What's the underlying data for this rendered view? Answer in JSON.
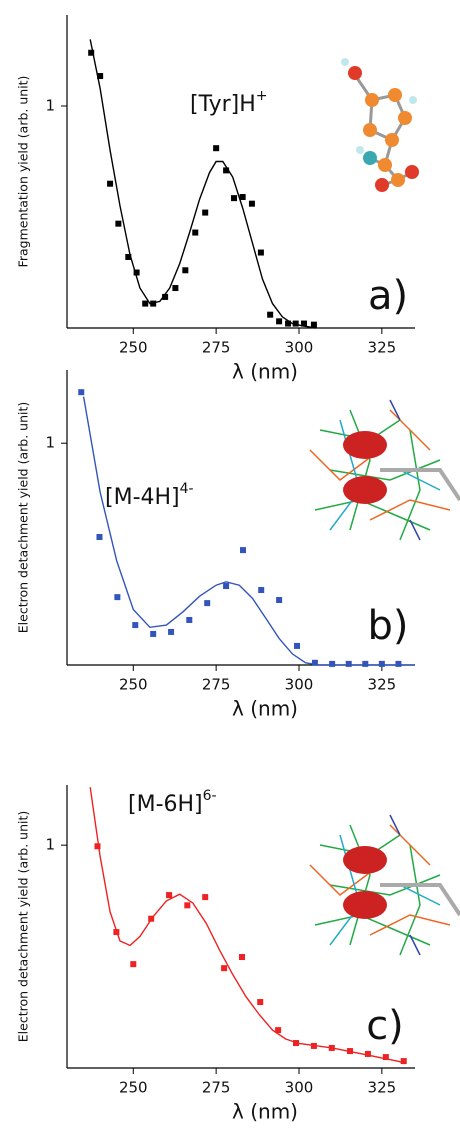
{
  "chart_data": [
    {
      "type": "scatter",
      "xlabel": "λ  (nm)",
      "ylabel": "Fragmentation yield (arb. unit)",
      "annotation": {
        "text": "[Tyr]H",
        "superscript": "+"
      },
      "panel_label": "a)",
      "xlim": [
        230,
        335
      ],
      "ylim": [
        0,
        1.41
      ],
      "xticks": [
        250,
        275,
        300,
        325
      ],
      "yticks": [
        1
      ],
      "series": [
        {
          "type": "line",
          "color": "#000000",
          "x": [
            237,
            240,
            243,
            246,
            249,
            252,
            255,
            258,
            261,
            264,
            267,
            270,
            273,
            275,
            277,
            280,
            283,
            286,
            289,
            292,
            295,
            298,
            301,
            305
          ],
          "values": [
            1.3,
            1.08,
            0.8,
            0.55,
            0.33,
            0.18,
            0.11,
            0.12,
            0.18,
            0.29,
            0.43,
            0.58,
            0.7,
            0.75,
            0.75,
            0.68,
            0.54,
            0.38,
            0.22,
            0.11,
            0.05,
            0.02,
            0.01,
            0
          ]
        },
        {
          "type": "scatter",
          "color": "#000000",
          "x": [
            237.3,
            240,
            243,
            245.5,
            248.5,
            251,
            253.6,
            256,
            259.6,
            262.7,
            265.7,
            268.7,
            271.7,
            275,
            278,
            280.4,
            283,
            285.8,
            288.5,
            291.3,
            294,
            296.7,
            299,
            301.5,
            304.5
          ],
          "values": [
            1.24,
            1.135,
            0.65,
            0.47,
            0.32,
            0.25,
            0.11,
            0.11,
            0.14,
            0.18,
            0.26,
            0.43,
            0.52,
            0.81,
            0.71,
            0.585,
            0.59,
            0.56,
            0.34,
            0.06,
            0.03,
            0.02,
            0.02,
            0.02,
            0.015
          ]
        }
      ]
    },
    {
      "type": "scatter",
      "xlabel": "λ  (nm)",
      "ylabel": "Electron detachment yield (arb. unit)",
      "annotation": {
        "text": "[M-4H]",
        "superscript": "4-"
      },
      "panel_label": "b)",
      "xlim": [
        230,
        335
      ],
      "ylim": [
        0,
        1.33
      ],
      "xticks": [
        250,
        275,
        300,
        325
      ],
      "yticks": [
        1
      ],
      "series": [
        {
          "type": "line",
          "color": "#3355bb",
          "x": [
            235,
            240,
            245,
            250,
            255,
            260,
            265,
            270,
            275,
            278,
            282,
            286,
            290,
            294,
            298,
            302,
            306,
            335
          ],
          "values": [
            1.21,
            0.78,
            0.47,
            0.25,
            0.17,
            0.18,
            0.24,
            0.31,
            0.36,
            0.375,
            0.36,
            0.3,
            0.21,
            0.12,
            0.05,
            0.01,
            0,
            0
          ]
        },
        {
          "type": "scatter",
          "color": "#3355bb",
          "x": [
            234.3,
            239.8,
            245.2,
            250.6,
            256,
            261.4,
            266.9,
            272.3,
            278,
            283.1,
            288.6,
            294,
            299.4,
            304.8,
            310,
            315,
            320,
            325,
            330
          ],
          "values": [
            1.23,
            0.577,
            0.306,
            0.18,
            0.14,
            0.149,
            0.203,
            0.279,
            0.356,
            0.518,
            0.338,
            0.293,
            0.086,
            0.01,
            0.005,
            0.005,
            0.005,
            0.005,
            0.005
          ]
        }
      ]
    },
    {
      "type": "scatter",
      "xlabel": "λ  (nm)",
      "ylabel": "Electron detachment yield (arb. unit)",
      "annotation": {
        "text": "[M-6H]",
        "superscript": "6-"
      },
      "panel_label": "c)",
      "xlim": [
        230,
        335
      ],
      "ylim": [
        0,
        1.27
      ],
      "xticks": [
        250,
        275,
        300,
        325
      ],
      "yticks": [
        1
      ],
      "series": [
        {
          "type": "line",
          "color": "#ee2222",
          "x": [
            237,
            240,
            243,
            246,
            249,
            252,
            256,
            260,
            264,
            268,
            272,
            276,
            280,
            284,
            288,
            292,
            296,
            300,
            310,
            320,
            330,
            332
          ],
          "values": [
            1.26,
            0.95,
            0.7,
            0.57,
            0.55,
            0.59,
            0.68,
            0.75,
            0.78,
            0.74,
            0.65,
            0.53,
            0.42,
            0.32,
            0.24,
            0.17,
            0.13,
            0.11,
            0.09,
            0.06,
            0.03,
            0.02
          ]
        },
        {
          "type": "scatter",
          "color": "#ee2222",
          "x": [
            239.2,
            244.9,
            250,
            255.4,
            260.8,
            266.3,
            271.7,
            277.4,
            282.8,
            288.3,
            293.7,
            299.1,
            304.5,
            309.9,
            315.4,
            320.8,
            326.2,
            331.6
          ],
          "values": [
            0.995,
            0.61,
            0.466,
            0.67,
            0.776,
            0.73,
            0.767,
            0.448,
            0.498,
            0.296,
            0.17,
            0.112,
            0.099,
            0.09,
            0.076,
            0.063,
            0.049,
            0.031
          ]
        }
      ]
    }
  ]
}
